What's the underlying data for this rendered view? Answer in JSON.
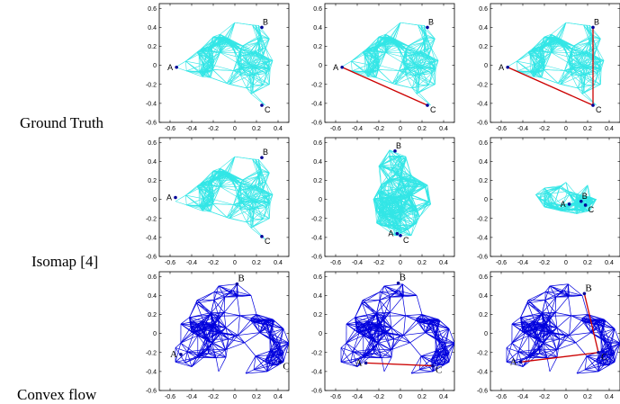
{
  "row_labels": [
    "Ground Truth",
    "Isomap [4]",
    "Convex flow"
  ],
  "colors": {
    "mesh_light": "#33e6e6",
    "mesh_dark": "#0000dd",
    "path": "#cc0000",
    "point": "#000099"
  },
  "chart_data": {
    "type": "scatter",
    "description_panels": 9,
    "xlim": [
      -0.7,
      0.5
    ],
    "ylim": [
      -0.6,
      0.65
    ],
    "xticks": [
      "-0.6",
      "-0.4",
      "-0.2",
      "0",
      "0.2",
      "0.4"
    ],
    "yticks": [
      "0.6",
      "0.4",
      "0.2",
      "0",
      "-0.2",
      "-0.4",
      "-0.6"
    ],
    "panels": [
      {
        "row": 0,
        "col": 0,
        "mesh": "light",
        "shape": "tri",
        "points": {
          "A": [
            -0.54,
            -0.02
          ],
          "B": [
            0.25,
            0.4
          ],
          "C": [
            0.25,
            -0.42
          ]
        },
        "path": []
      },
      {
        "row": 0,
        "col": 1,
        "mesh": "light",
        "shape": "tri",
        "points": {
          "A": [
            -0.54,
            -0.02
          ],
          "B": [
            0.25,
            0.4
          ],
          "C": [
            0.25,
            -0.42
          ]
        },
        "path": [
          [
            "A",
            "C"
          ]
        ]
      },
      {
        "row": 0,
        "col": 2,
        "mesh": "light",
        "shape": "tri",
        "points": {
          "A": [
            -0.54,
            -0.02
          ],
          "B": [
            0.25,
            0.4
          ],
          "C": [
            0.25,
            -0.42
          ]
        },
        "path": [
          [
            "A",
            "C"
          ],
          [
            "B",
            "C"
          ]
        ]
      },
      {
        "row": 1,
        "col": 0,
        "mesh": "light",
        "shape": "tri",
        "points": {
          "A": [
            -0.55,
            0.02
          ],
          "B": [
            0.25,
            0.44
          ],
          "C": [
            0.25,
            -0.39
          ]
        },
        "path": []
      },
      {
        "row": 1,
        "col": 1,
        "mesh": "light",
        "shape": "blob",
        "points": {
          "A": [
            -0.03,
            -0.36
          ],
          "B": [
            -0.05,
            0.51
          ],
          "C": [
            0.0,
            -0.38
          ]
        },
        "path": []
      },
      {
        "row": 1,
        "col": 2,
        "mesh": "light",
        "shape": "small",
        "points": {
          "A": [
            0.03,
            -0.05
          ],
          "B": [
            0.14,
            -0.02
          ],
          "C": [
            0.18,
            -0.06
          ]
        },
        "path": []
      },
      {
        "row": 2,
        "col": 0,
        "mesh": "dark",
        "shape": "flow",
        "points": {
          "A": [
            -0.5,
            -0.22
          ],
          "B": [
            0.02,
            0.52
          ],
          "C": [
            0.42,
            -0.3
          ]
        },
        "path": []
      },
      {
        "row": 2,
        "col": 1,
        "mesh": "dark",
        "shape": "flow",
        "points": {
          "A": [
            -0.32,
            -0.31
          ],
          "B": [
            -0.02,
            0.53
          ],
          "C": [
            0.3,
            -0.34
          ]
        },
        "path": [
          [
            "A",
            "C"
          ]
        ]
      },
      {
        "row": 2,
        "col": 2,
        "mesh": "dark",
        "shape": "flow",
        "points": {
          "A": [
            -0.42,
            -0.3
          ],
          "B": [
            0.17,
            0.42
          ],
          "C": [
            0.3,
            -0.2
          ]
        },
        "path": [
          [
            "A",
            "C"
          ],
          [
            "B",
            "C"
          ]
        ]
      }
    ]
  }
}
